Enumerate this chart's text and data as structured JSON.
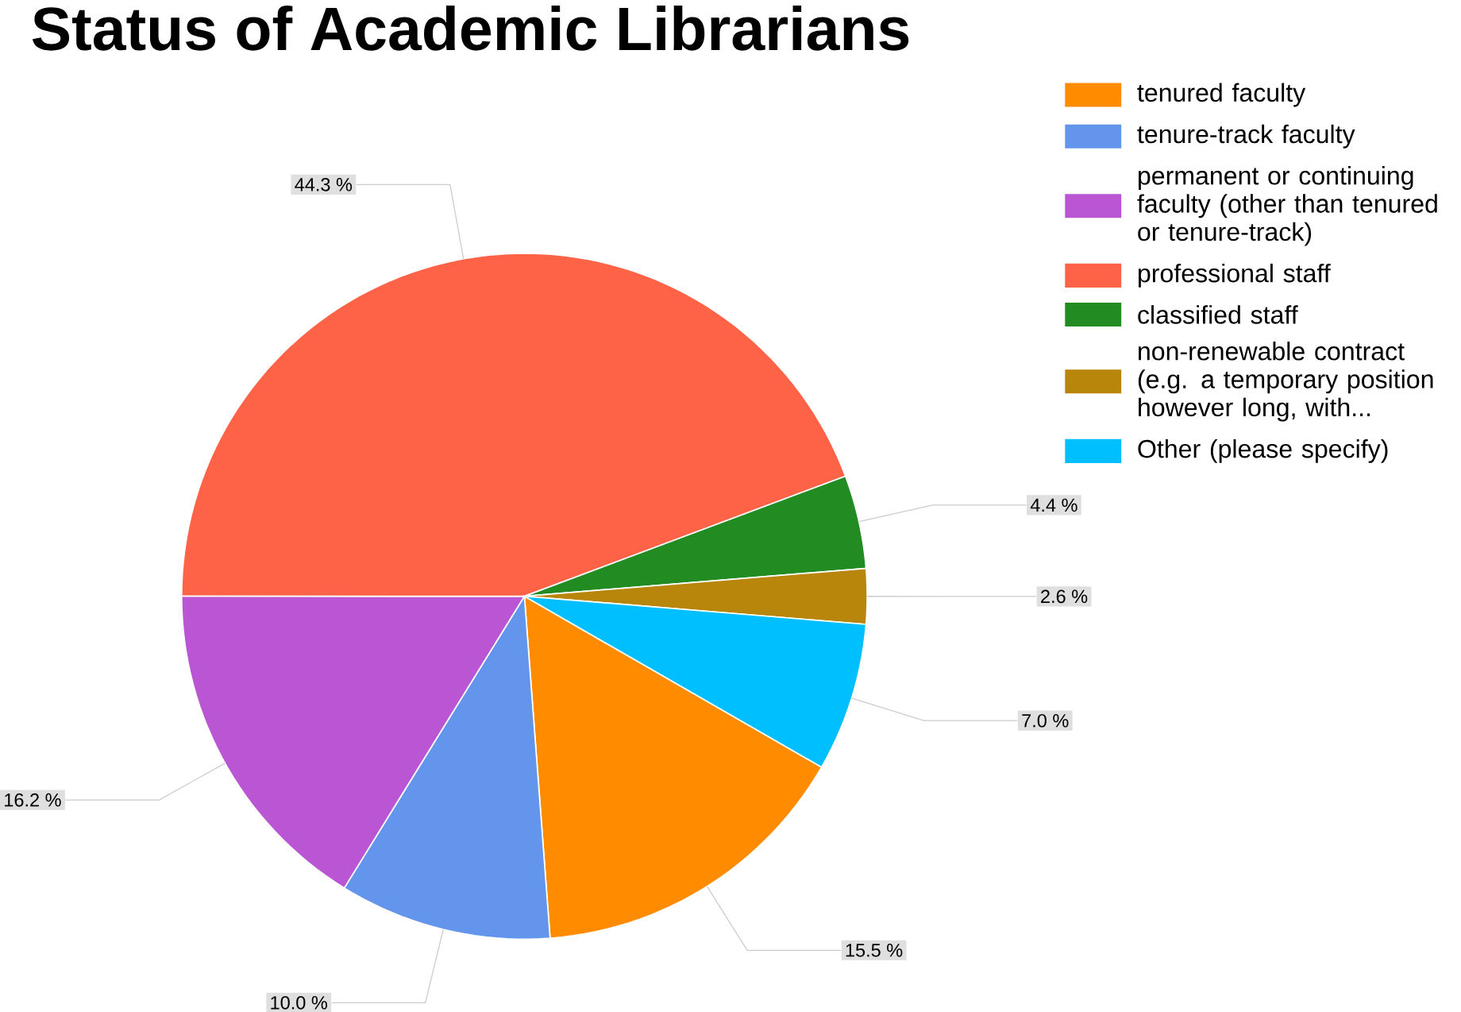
{
  "chart_data": {
    "type": "pie",
    "title": "Status of Academic Librarians",
    "categories": [
      "tenured faculty",
      "tenure-track faculty",
      "permanent or continuing faculty (other than tenured or tenure-track)",
      "professional staff",
      "classified staff",
      "non-renewable contract (e.g. a temporary position however long, with...",
      "Other (please specify)"
    ],
    "values": [
      15.5,
      10.0,
      16.2,
      44.3,
      4.4,
      2.6,
      7.0
    ],
    "colors": [
      "#ff8c00",
      "#6495ed",
      "#ba55d3",
      "#ff6347",
      "#228b22",
      "#b8860b",
      "#00bfff"
    ],
    "value_labels": [
      "15.5 %",
      "10.0 %",
      "16.2 %",
      "44.3 %",
      "4.4 %",
      "2.6 %",
      "7.0 %"
    ],
    "legend": "right"
  }
}
